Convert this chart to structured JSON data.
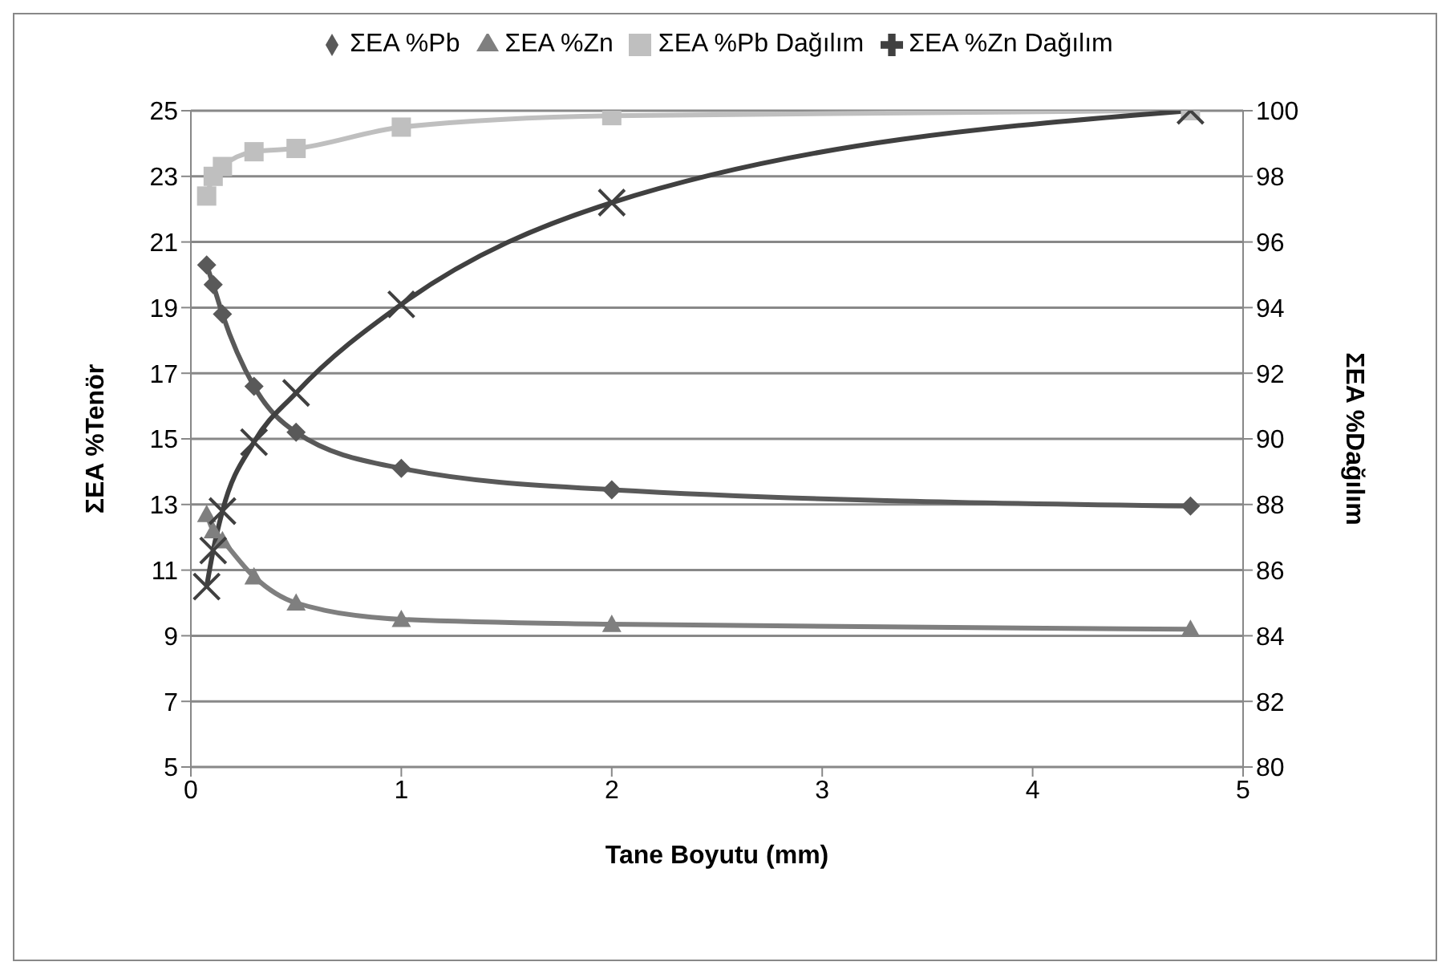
{
  "chart_data": {
    "type": "line",
    "xlabel": "Tane Boyutu (mm)",
    "ylabel": "ΣEA %Tenör",
    "y2label": "ΣEA %Dağılım",
    "x": [
      0.075,
      0.106,
      0.15,
      0.3,
      0.5,
      1,
      2,
      4.75
    ],
    "series": [
      {
        "name": "ΣEA %Pb",
        "color": "#595959",
        "marker": "diamond",
        "values": [
          20.3,
          19.7,
          18.8,
          16.6,
          15.2,
          14.1,
          13.45,
          12.95
        ]
      },
      {
        "name": "ΣEA %Zn",
        "color": "#7f7f7f",
        "marker": "triangle",
        "values": [
          12.7,
          12.2,
          11.9,
          10.8,
          10.0,
          9.5,
          9.35,
          9.2
        ]
      },
      {
        "name": "ΣEA %Pb Dağılım",
        "color": "#bfbfbf",
        "marker": "square",
        "axis": "y2",
        "values": [
          97.4,
          98.0,
          98.3,
          98.75,
          98.85,
          99.5,
          99.85,
          100
        ]
      },
      {
        "name": "ΣEA %Zn Dağılım",
        "color": "#404040",
        "marker": "cross",
        "axis": "y2",
        "values": [
          85.5,
          86.6,
          87.8,
          89.9,
          91.4,
          94.1,
          97.2,
          100
        ]
      }
    ],
    "xlim": [
      0,
      5
    ],
    "xticks": [
      0,
      1,
      2,
      3,
      4,
      5
    ],
    "ylim": [
      5,
      25
    ],
    "yticks": [
      5,
      7,
      9,
      11,
      13,
      15,
      17,
      19,
      21,
      23,
      25
    ],
    "y2lim": [
      80,
      100
    ],
    "y2ticks": [
      80,
      82,
      84,
      86,
      88,
      90,
      92,
      94,
      96,
      98,
      100
    ],
    "grid": "y",
    "legend": "top",
    "line_style": "solid"
  }
}
